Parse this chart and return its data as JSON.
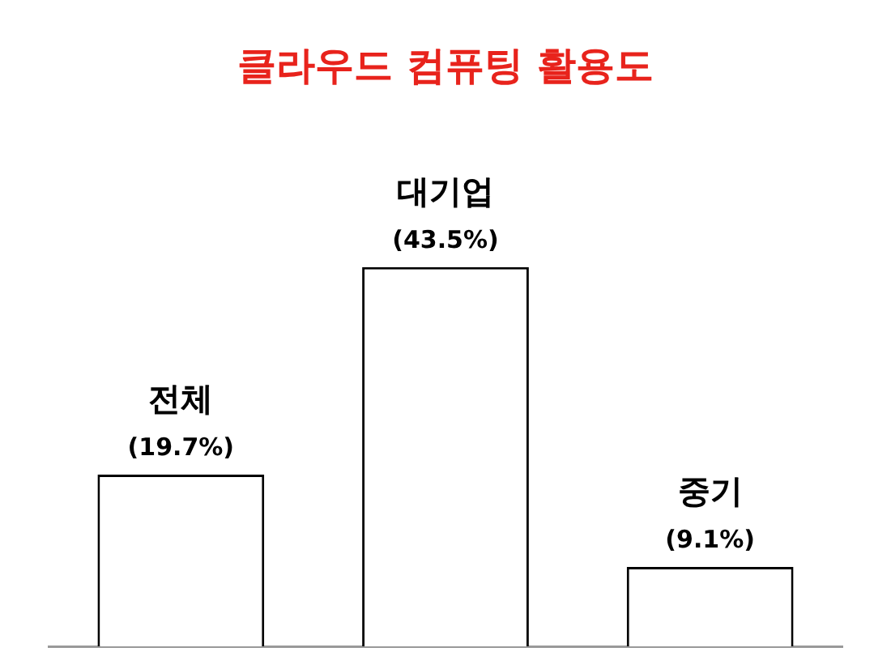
{
  "chart_data": {
    "type": "bar",
    "title": "클라우드 컴퓨팅 활용도",
    "categories": [
      "전체",
      "대기업",
      "중기"
    ],
    "values": [
      19.7,
      43.5,
      9.1
    ],
    "value_labels": [
      "(19.7%)",
      "(43.5%)",
      "(9.1%)"
    ],
    "color": "#ffffff",
    "grid": false,
    "legend": false
  }
}
